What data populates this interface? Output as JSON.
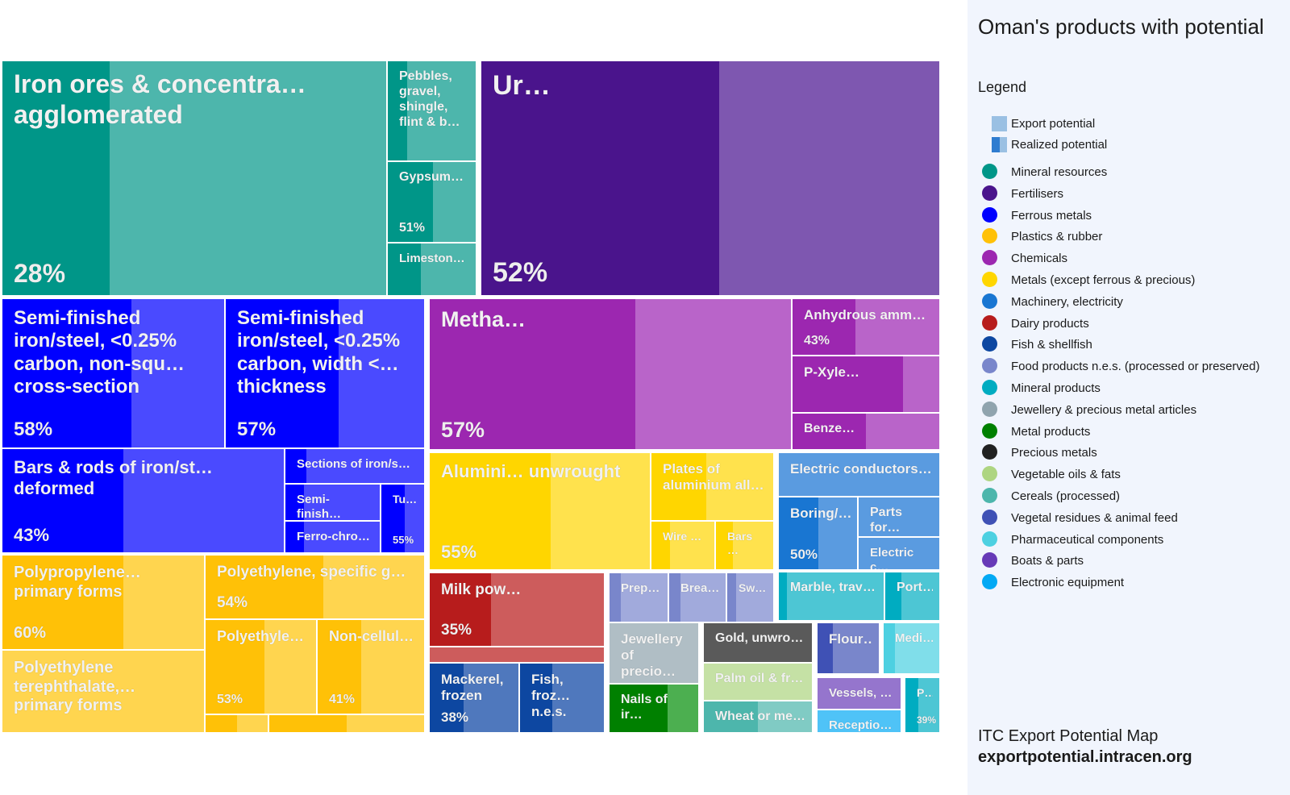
{
  "sidebar": {
    "title": "Oman's products with potential",
    "legend_heading": "Legend",
    "export_potential_label": "Export potential",
    "realized_potential_label": "Realized potential",
    "categories": [
      {
        "label": "Mineral resources",
        "color": "#009688"
      },
      {
        "label": "Fertilisers",
        "color": "#4a148c"
      },
      {
        "label": "Ferrous metals",
        "color": "#0000ff"
      },
      {
        "label": "Plastics & rubber",
        "color": "#ffc107"
      },
      {
        "label": "Chemicals",
        "color": "#9c27b0"
      },
      {
        "label": "Metals (except ferrous & precious)",
        "color": "#ffd600"
      },
      {
        "label": "Machinery, electricity",
        "color": "#1976d2"
      },
      {
        "label": "Dairy products",
        "color": "#b71c1c"
      },
      {
        "label": "Fish & shellfish",
        "color": "#0d47a1"
      },
      {
        "label": "Food products n.e.s. (processed or preserved)",
        "color": "#7986cb"
      },
      {
        "label": "Mineral products",
        "color": "#00acc1"
      },
      {
        "label": "Jewellery & precious metal articles",
        "color": "#90a4ae"
      },
      {
        "label": "Metal products",
        "color": "#008000"
      },
      {
        "label": "Precious metals",
        "color": "#212121"
      },
      {
        "label": "Vegetable oils & fats",
        "color": "#aed581"
      },
      {
        "label": "Cereals (processed)",
        "color": "#4db6ac"
      },
      {
        "label": "Vegetal residues & animal feed",
        "color": "#3f51b5"
      },
      {
        "label": "Pharmaceutical components",
        "color": "#4dd0e1"
      },
      {
        "label": "Boats & parts",
        "color": "#673ab7"
      },
      {
        "label": "Electronic equipment",
        "color": "#03a9f4"
      }
    ],
    "source_line1": "ITC Export Potential Map",
    "source_line2": "exportpotential.intracen.org"
  },
  "chart_data": {
    "type": "treemap",
    "title": "Oman's products with potential",
    "legend_placement": "right",
    "tiles": [
      {
        "label": "Iron ores & concentra… agglomerated",
        "category": "Mineral resources",
        "realized_pct_text": "28%",
        "realized_fraction": 0.28,
        "base": "#009688",
        "light": "#4db6ac"
      },
      {
        "label": "Pebbles, gravel, shingle, flint & b…",
        "category": "Mineral resources",
        "realized_pct_text": "",
        "realized_fraction": 0.22,
        "base": "#009688",
        "light": "#4db6ac"
      },
      {
        "label": "Gypsum…",
        "category": "Mineral resources",
        "realized_pct_text": "51%",
        "realized_fraction": 0.51,
        "base": "#009688",
        "light": "#4db6ac"
      },
      {
        "label": "Limeston…",
        "category": "Mineral resources",
        "realized_pct_text": "",
        "realized_fraction": 0.38,
        "base": "#009688",
        "light": "#4db6ac"
      },
      {
        "label": "Ur…",
        "category": "Fertilisers",
        "realized_pct_text": "52%",
        "realized_fraction": 0.52,
        "base": "#4a148c",
        "light": "#7e57b0"
      },
      {
        "label": "Semi-finished iron/steel, <0.25% carbon, non-squ… cross-section",
        "category": "Ferrous metals",
        "realized_pct_text": "58%",
        "realized_fraction": 0.58,
        "base": "#0000ff",
        "light": "#4a4aff"
      },
      {
        "label": "Semi-finished iron/steel, <0.25% carbon, width <… thickness",
        "category": "Ferrous metals",
        "realized_pct_text": "57%",
        "realized_fraction": 0.57,
        "base": "#0000ff",
        "light": "#4a4aff"
      },
      {
        "label": "Bars & rods of iron/st… deformed",
        "category": "Ferrous metals",
        "realized_pct_text": "43%",
        "realized_fraction": 0.43,
        "base": "#0000ff",
        "light": "#4a4aff"
      },
      {
        "label": "Sections of iron/s…",
        "category": "Ferrous metals",
        "realized_pct_text": "",
        "realized_fraction": 0.15,
        "base": "#0000ff",
        "light": "#4a4aff"
      },
      {
        "label": "Semi-finish…",
        "category": "Ferrous metals",
        "realized_pct_text": "",
        "realized_fraction": 0.2,
        "base": "#0000ff",
        "light": "#4a4aff"
      },
      {
        "label": "Ferro-chro…",
        "category": "Ferrous metals",
        "realized_pct_text": "",
        "realized_fraction": 0.2,
        "base": "#0000ff",
        "light": "#4a4aff"
      },
      {
        "label": "Tu…",
        "category": "Ferrous metals",
        "realized_pct_text": "55%",
        "realized_fraction": 0.55,
        "base": "#0000ff",
        "light": "#4a4aff"
      },
      {
        "label": "Metha…",
        "category": "Chemicals",
        "realized_pct_text": "57%",
        "realized_fraction": 0.57,
        "base": "#9c27b0",
        "light": "#b964c9"
      },
      {
        "label": "Anhydrous amm…",
        "category": "Chemicals",
        "realized_pct_text": "43%",
        "realized_fraction": 0.43,
        "base": "#9c27b0",
        "light": "#b964c9"
      },
      {
        "label": "P-Xyle…",
        "category": "Chemicals",
        "realized_pct_text": "",
        "realized_fraction": 0.75,
        "base": "#9c27b0",
        "light": "#b964c9"
      },
      {
        "label": "Benze…",
        "category": "Chemicals",
        "realized_pct_text": "",
        "realized_fraction": 0.5,
        "base": "#9c27b0",
        "light": "#b964c9"
      },
      {
        "label": "Alumini… unwrought",
        "category": "Metals (except ferrous & precious)",
        "realized_pct_text": "55%",
        "realized_fraction": 0.55,
        "base": "#ffd600",
        "light": "#ffe24d"
      },
      {
        "label": "Plates of aluminium all…",
        "category": "Metals (except ferrous & precious)",
        "realized_pct_text": "",
        "realized_fraction": 0.45,
        "base": "#ffd600",
        "light": "#ffe24d"
      },
      {
        "label": "Wire …",
        "category": "Metals (except ferrous & precious)",
        "realized_pct_text": "",
        "realized_fraction": 0.3,
        "base": "#ffd600",
        "light": "#ffe24d"
      },
      {
        "label": "Bars …",
        "category": "Metals (except ferrous & precious)",
        "realized_pct_text": "",
        "realized_fraction": 0.3,
        "base": "#ffd600",
        "light": "#ffe24d"
      },
      {
        "label": "Electric conductors…",
        "category": "Machinery, electricity",
        "realized_pct_text": "",
        "realized_fraction": 0.0,
        "base": "#1976d2",
        "light": "#5a9be0"
      },
      {
        "label": "Boring/…",
        "category": "Machinery, electricity",
        "realized_pct_text": "50%",
        "realized_fraction": 0.5,
        "base": "#1976d2",
        "light": "#5a9be0"
      },
      {
        "label": "Parts for…",
        "category": "Machinery, electricity",
        "realized_pct_text": "",
        "realized_fraction": 0.0,
        "base": "#1976d2",
        "light": "#5a9be0"
      },
      {
        "label": "Electric c…",
        "category": "Machinery, electricity",
        "realized_pct_text": "",
        "realized_fraction": 0.0,
        "base": "#1976d2",
        "light": "#5a9be0"
      },
      {
        "label": "Polypropylene… primary forms",
        "category": "Plastics & rubber",
        "realized_pct_text": "60%",
        "realized_fraction": 0.6,
        "base": "#ffc107",
        "light": "#ffd54f"
      },
      {
        "label": "Polyethylene, specific g…",
        "category": "Plastics & rubber",
        "realized_pct_text": "54%",
        "realized_fraction": 0.54,
        "base": "#ffc107",
        "light": "#ffd54f"
      },
      {
        "label": "Polyethylene terephthalate,… primary forms",
        "category": "Plastics & rubber",
        "realized_pct_text": "",
        "realized_fraction": 0.0,
        "base": "#ffc107",
        "light": "#ffd54f"
      },
      {
        "label": "Polyethyle…",
        "category": "Plastics & rubber",
        "realized_pct_text": "53%",
        "realized_fraction": 0.53,
        "base": "#ffc107",
        "light": "#ffd54f"
      },
      {
        "label": "Non-cellul…",
        "category": "Plastics & rubber",
        "realized_pct_text": "41%",
        "realized_fraction": 0.41,
        "base": "#ffc107",
        "light": "#ffd54f"
      },
      {
        "label": "Milk pow…",
        "category": "Dairy products",
        "realized_pct_text": "35%",
        "realized_fraction": 0.35,
        "base": "#b71c1c",
        "light": "#cd5c5c"
      },
      {
        "label": "Mackerel, frozen",
        "category": "Fish & shellfish",
        "realized_pct_text": "38%",
        "realized_fraction": 0.38,
        "base": "#0d47a1",
        "light": "#4f78bd"
      },
      {
        "label": "Fish, froz… n.e.s.",
        "category": "Fish & shellfish",
        "realized_pct_text": "",
        "realized_fraction": 0.38,
        "base": "#0d47a1",
        "light": "#4f78bd"
      },
      {
        "label": "Prep…",
        "category": "Food products n.e.s. (processed or preserved)",
        "realized_pct_text": "",
        "realized_fraction": 0.2,
        "base": "#7986cb",
        "light": "#a1aadc"
      },
      {
        "label": "Brea…",
        "category": "Food products n.e.s. (processed or preserved)",
        "realized_pct_text": "",
        "realized_fraction": 0.2,
        "base": "#7986cb",
        "light": "#a1aadc"
      },
      {
        "label": "Sw…",
        "category": "Food products n.e.s. (processed or preserved)",
        "realized_pct_text": "",
        "realized_fraction": 0.2,
        "base": "#7986cb",
        "light": "#a1aadc"
      },
      {
        "label": "Jewellery of precio…",
        "category": "Jewellery & precious metal articles",
        "realized_pct_text": "",
        "realized_fraction": 0.0,
        "base": "#90a4ae",
        "light": "#b0bec5"
      },
      {
        "label": "Gold, unwro…",
        "category": "Precious metals",
        "realized_pct_text": "",
        "realized_fraction": 0.0,
        "base": "#212121",
        "light": "#5a5a5a"
      },
      {
        "label": "Palm oil & fr…",
        "category": "Vegetable oils & fats",
        "realized_pct_text": "",
        "realized_fraction": 0.0,
        "base": "#aed581",
        "light": "#c5e1a5"
      },
      {
        "label": "Nails of ir…",
        "category": "Metal products",
        "realized_pct_text": "",
        "realized_fraction": 0.65,
        "base": "#008000",
        "light": "#4caf50"
      },
      {
        "label": "Wheat or me…",
        "category": "Cereals (processed)",
        "realized_pct_text": "",
        "realized_fraction": 0.5,
        "base": "#4db6ac",
        "light": "#80cbc4"
      },
      {
        "label": "Marble, trav…",
        "category": "Mineral products",
        "realized_pct_text": "",
        "realized_fraction": 0.08,
        "base": "#00acc1",
        "light": "#4dc6d4"
      },
      {
        "label": "Port…",
        "category": "Mineral products",
        "realized_pct_text": "",
        "realized_fraction": 0.3,
        "base": "#00acc1",
        "light": "#4dc6d4"
      },
      {
        "label": "Flour…",
        "category": "Vegetal residues & animal feed",
        "realized_pct_text": "",
        "realized_fraction": 0.25,
        "base": "#3f51b5",
        "light": "#7986cb"
      },
      {
        "label": "Medi…",
        "category": "Pharmaceutical components",
        "realized_pct_text": "",
        "realized_fraction": 0.2,
        "base": "#4dd0e1",
        "light": "#80deea"
      },
      {
        "label": "Vessels, …",
        "category": "Boats & parts",
        "realized_pct_text": "",
        "realized_fraction": 0.0,
        "base": "#673ab7",
        "light": "#9575cd"
      },
      {
        "label": "Receptio…",
        "category": "Electronic equipment",
        "realized_pct_text": "",
        "realized_fraction": 0.0,
        "base": "#03a9f4",
        "light": "#4fc3f7"
      },
      {
        "label": "P…",
        "category": "Mineral products",
        "realized_pct_text": "39%",
        "realized_fraction": 0.39,
        "base": "#00acc1",
        "light": "#4dc6d4"
      },
      {
        "label": "",
        "category": "Plastics & rubber",
        "realized_pct_text": "",
        "realized_fraction": 0.5,
        "base": "#ffc107",
        "light": "#ffd54f"
      },
      {
        "label": "",
        "category": "Plastics & rubber",
        "realized_pct_text": "",
        "realized_fraction": 0.5,
        "base": "#ffc107",
        "light": "#ffd54f"
      },
      {
        "label": "",
        "category": "Dairy products",
        "realized_pct_text": "",
        "realized_fraction": 0.0,
        "base": "#b71c1c",
        "light": "#cd5c5c"
      }
    ]
  }
}
